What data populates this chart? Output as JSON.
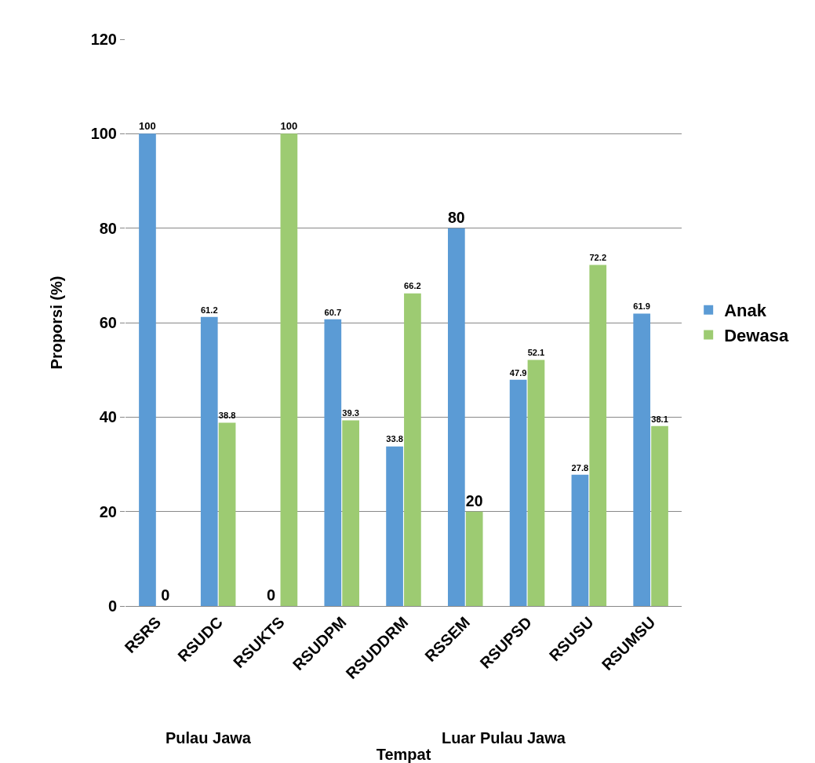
{
  "chart_data": {
    "type": "bar",
    "xlabel": "Tempat",
    "ylabel": "Proporsi (%)",
    "categories": [
      "RSRS",
      "RSUDC",
      "RSUKTS",
      "RSUDPM",
      "RSUDDRM",
      "RSSEM",
      "RSUPSD",
      "RSUSU",
      "RSUMSU"
    ],
    "series": [
      {
        "name": "Anak",
        "color": "#5b9bd5",
        "values": [
          100,
          61.2,
          0,
          60.7,
          33.8,
          80,
          47.9,
          27.8,
          61.9
        ]
      },
      {
        "name": "Dewasa",
        "color": "#9dcb72",
        "values": [
          0,
          38.8,
          100,
          39.3,
          66.2,
          20,
          52.1,
          72.2,
          38.1
        ]
      }
    ],
    "ylim": [
      0,
      120
    ],
    "yticks": [
      0,
      20,
      40,
      60,
      80,
      100,
      120
    ],
    "grid": "y",
    "legend": "right",
    "data_labels": true,
    "annotations": [
      "Pulau Jawa",
      "Luar Pulau Jawa"
    ]
  }
}
